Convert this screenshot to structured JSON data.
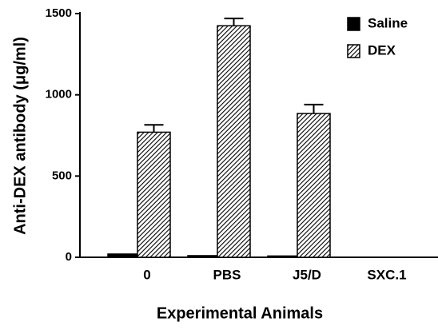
{
  "chart_data": {
    "type": "bar",
    "y_label": "Anti-DEX antibody (μg/ml)",
    "x_label": "Experimental Animals",
    "categories": [
      "0",
      "PBS",
      "J5/D",
      "SXC.1"
    ],
    "series": [
      {
        "name": "Saline",
        "color": "#000000",
        "hatch": false,
        "values": [
          20,
          10,
          8,
          0
        ]
      },
      {
        "name": "DEX",
        "color": "#000000",
        "hatch": true,
        "values": [
          770,
          1425,
          885,
          0
        ],
        "errors": [
          45,
          45,
          55,
          null
        ]
      }
    ],
    "ylim": [
      0,
      1500
    ],
    "yticks": [
      0,
      500,
      1000,
      1500
    ],
    "legend": "upper right"
  }
}
